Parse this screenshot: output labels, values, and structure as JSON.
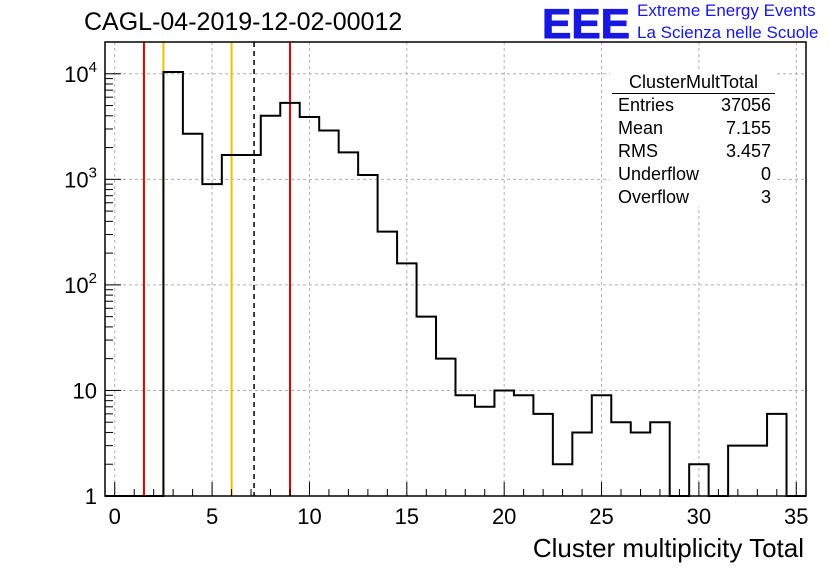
{
  "title": "CAGL-04-2019-12-02-00012",
  "logo": {
    "mark": "EEE",
    "line1": "Extreme Energy Events",
    "line2": "La Scienza nelle Scuole",
    "color": "#1818e0"
  },
  "stats": {
    "title": "ClusterMultTotal",
    "rows": [
      {
        "label": "Entries",
        "value": "37056"
      },
      {
        "label": "Mean",
        "value": "7.155"
      },
      {
        "label": "RMS",
        "value": "3.457"
      },
      {
        "label": "Underflow",
        "value": "0"
      },
      {
        "label": "Overflow",
        "value": "3"
      }
    ]
  },
  "chart_data": {
    "type": "histogram",
    "title": "CAGL-04-2019-12-02-00012",
    "xlabel": "Cluster multiplicity Total",
    "ylabel": "",
    "xlim": [
      -0.5,
      35.5
    ],
    "ylim": [
      1,
      20000
    ],
    "yscale": "log",
    "grid": true,
    "bin_edges": [
      -0.5,
      0.5,
      1.5,
      2.5,
      3.5,
      4.5,
      5.5,
      6.5,
      7.5,
      8.5,
      9.5,
      10.5,
      11.5,
      12.5,
      13.5,
      14.5,
      15.5,
      16.5,
      17.5,
      18.5,
      19.5,
      20.5,
      21.5,
      22.5,
      23.5,
      24.5,
      25.5,
      26.5,
      27.5,
      28.5,
      29.5,
      30.5,
      31.5,
      32.5,
      33.5,
      34.5,
      35.5
    ],
    "counts": [
      0,
      0,
      0,
      10400,
      2700,
      900,
      1700,
      1700,
      4000,
      5300,
      3900,
      2900,
      1800,
      1100,
      320,
      160,
      50,
      20,
      9,
      7,
      10,
      9,
      6,
      2,
      4,
      9,
      5,
      4,
      5,
      1,
      2,
      1,
      3,
      3,
      6,
      0
    ],
    "xticks": [
      0,
      5,
      10,
      15,
      20,
      25,
      30,
      35
    ],
    "xtick_labels": [
      "0",
      "5",
      "10",
      "15",
      "20",
      "25",
      "30",
      "35"
    ],
    "yticks": [
      1,
      10,
      100,
      1000,
      10000
    ],
    "ytick_labels": [
      {
        "base": "1",
        "exp": ""
      },
      {
        "base": "10",
        "exp": ""
      },
      {
        "base": "10",
        "exp": "2"
      },
      {
        "base": "10",
        "exp": "3"
      },
      {
        "base": "10",
        "exp": "4"
      }
    ],
    "vertical_lines": [
      {
        "x": 1.5,
        "color": "#e00000",
        "style": "solid"
      },
      {
        "x": 2.5,
        "color": "#f0c000",
        "style": "solid"
      },
      {
        "x": 6.0,
        "color": "#f0c000",
        "style": "solid"
      },
      {
        "x": 7.155,
        "color": "#000000",
        "style": "dashed"
      },
      {
        "x": 9.0,
        "color": "#e00000",
        "style": "solid"
      }
    ]
  }
}
